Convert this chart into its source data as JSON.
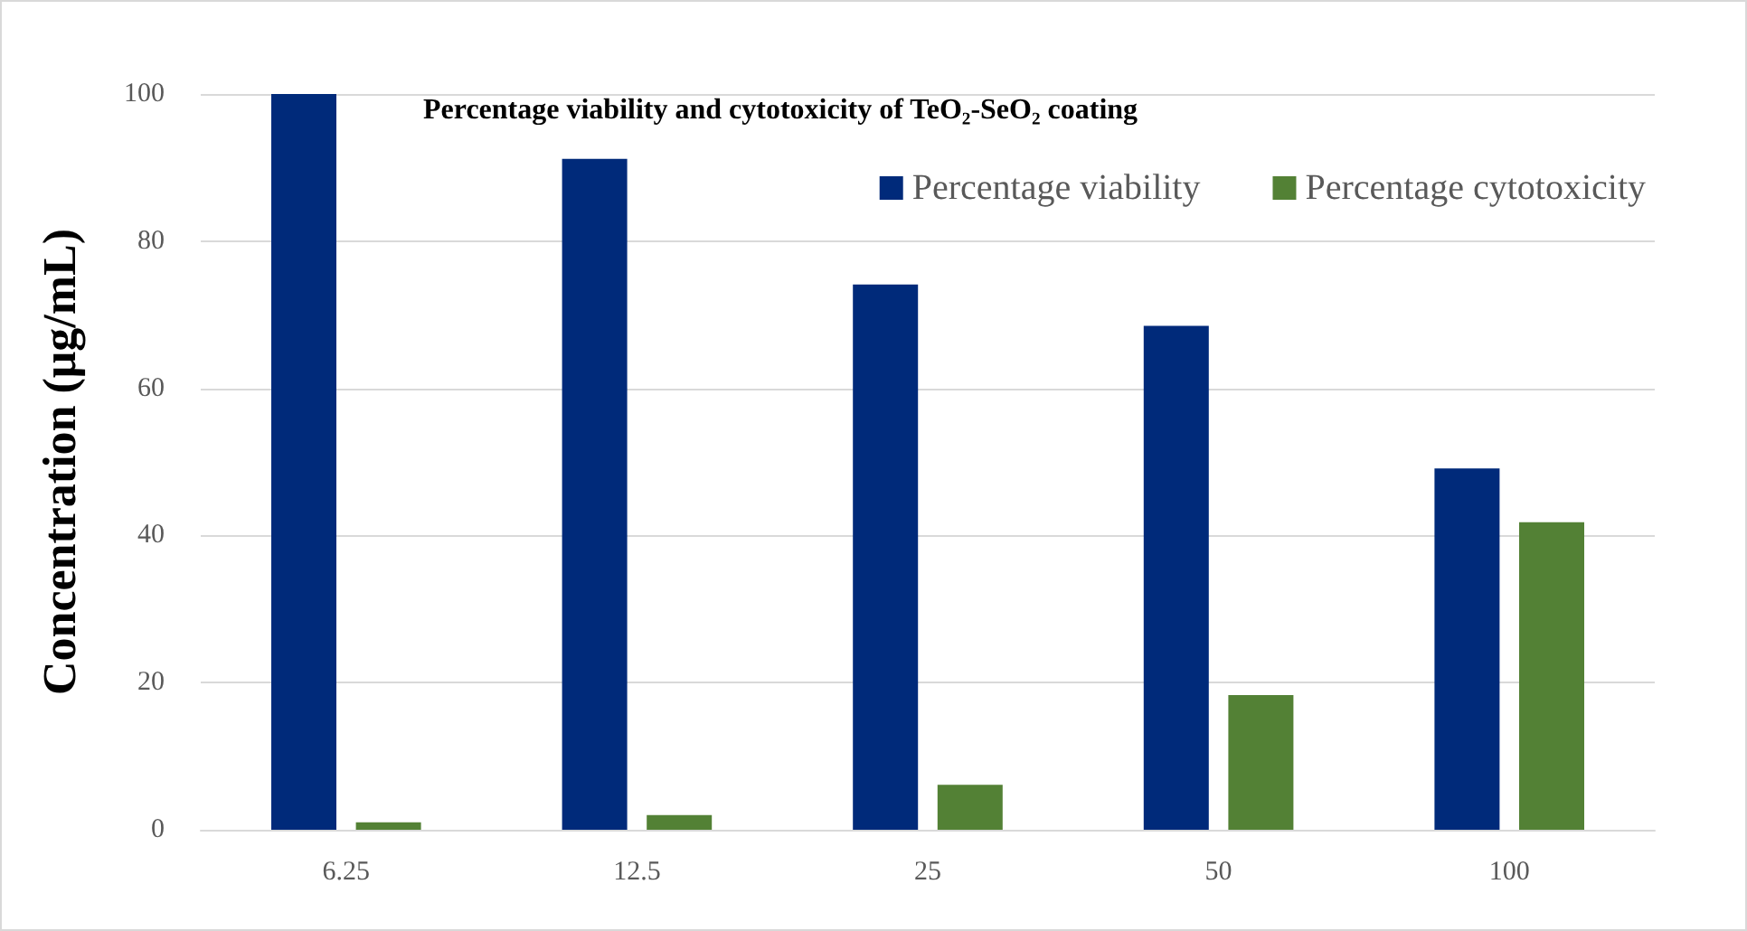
{
  "chart_data": {
    "type": "bar",
    "title": "Percentage viability and cytotoxicity of TeO₂-SeO₂ coating",
    "ylabel": "Concentration (μg/mL)",
    "categories": [
      "6.25",
      "12.5",
      "25",
      "50",
      "100"
    ],
    "series": [
      {
        "name": "Percentage viability",
        "color": "#002a7a",
        "values": [
          100,
          91.2,
          74.1,
          68.5,
          49.1
        ]
      },
      {
        "name": "Percentage cytotoxicity",
        "color": "#538135",
        "values": [
          1,
          2,
          6.1,
          18.3,
          41.8
        ]
      }
    ],
    "ylim": [
      0,
      100
    ],
    "yticks": [
      0,
      20,
      40,
      60,
      80,
      100
    ],
    "grid": "y",
    "legend": "top right"
  }
}
